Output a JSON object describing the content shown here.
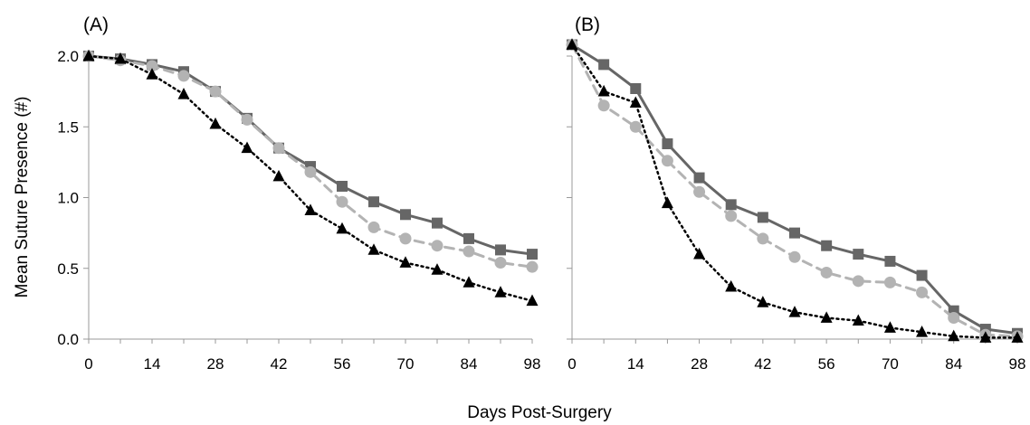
{
  "figure": {
    "ylabel": "Mean Suture Presence (#)",
    "xlabel": "Days Post-Surgery"
  },
  "chart_data": [
    {
      "type": "line",
      "panel_label": "(A)",
      "x": [
        0,
        7,
        14,
        21,
        28,
        35,
        42,
        49,
        56,
        63,
        70,
        77,
        84,
        91,
        98
      ],
      "x_ticks": [
        "0",
        "14",
        "28",
        "42",
        "56",
        "70",
        "84",
        "98"
      ],
      "y_ticks": [
        "0.0",
        "0.5",
        "1.0",
        "1.5",
        "2.0"
      ],
      "xlim": [
        0,
        98
      ],
      "ylim": [
        0,
        2.0
      ],
      "grid": false,
      "legend": "none",
      "series": [
        {
          "style": "solid-square",
          "color": "#666666",
          "values": [
            2.0,
            1.98,
            1.94,
            1.89,
            1.75,
            1.56,
            1.35,
            1.22,
            1.08,
            0.97,
            0.88,
            0.82,
            0.71,
            0.63,
            0.6
          ]
        },
        {
          "style": "dashed-circle",
          "color": "#b3b3b3",
          "values": [
            2.0,
            1.97,
            1.93,
            1.86,
            1.75,
            1.55,
            1.35,
            1.18,
            0.97,
            0.79,
            0.71,
            0.66,
            0.62,
            0.54,
            0.51
          ]
        },
        {
          "style": "dotted-triangle",
          "color": "#000000",
          "values": [
            2.0,
            1.98,
            1.87,
            1.73,
            1.52,
            1.35,
            1.15,
            0.91,
            0.78,
            0.63,
            0.54,
            0.49,
            0.4,
            0.33,
            0.27
          ]
        }
      ]
    },
    {
      "type": "line",
      "panel_label": "(B)",
      "x": [
        0,
        7,
        14,
        21,
        28,
        35,
        42,
        49,
        56,
        63,
        70,
        77,
        84,
        91,
        98
      ],
      "x_ticks": [
        "0",
        "14",
        "28",
        "42",
        "56",
        "70",
        "84",
        "98"
      ],
      "y_ticks": [
        "0.0",
        "0.5",
        "1.0",
        "1.5",
        "2.0"
      ],
      "xlim": [
        0,
        98
      ],
      "ylim": [
        0,
        2.0
      ],
      "grid": false,
      "legend": "none",
      "series": [
        {
          "style": "solid-square",
          "color": "#666666",
          "values": [
            2.08,
            1.94,
            1.77,
            1.38,
            1.14,
            0.95,
            0.86,
            0.75,
            0.66,
            0.6,
            0.55,
            0.45,
            0.2,
            0.07,
            0.04
          ]
        },
        {
          "style": "dashed-circle",
          "color": "#b3b3b3",
          "values": [
            2.08,
            1.65,
            1.5,
            1.26,
            1.04,
            0.87,
            0.71,
            0.58,
            0.47,
            0.41,
            0.4,
            0.33,
            0.15,
            0.03,
            0.02
          ]
        },
        {
          "style": "dotted-triangle",
          "color": "#000000",
          "values": [
            2.08,
            1.75,
            1.67,
            0.96,
            0.6,
            0.37,
            0.26,
            0.19,
            0.15,
            0.13,
            0.08,
            0.05,
            0.02,
            0.01,
            0.01
          ]
        }
      ]
    }
  ]
}
